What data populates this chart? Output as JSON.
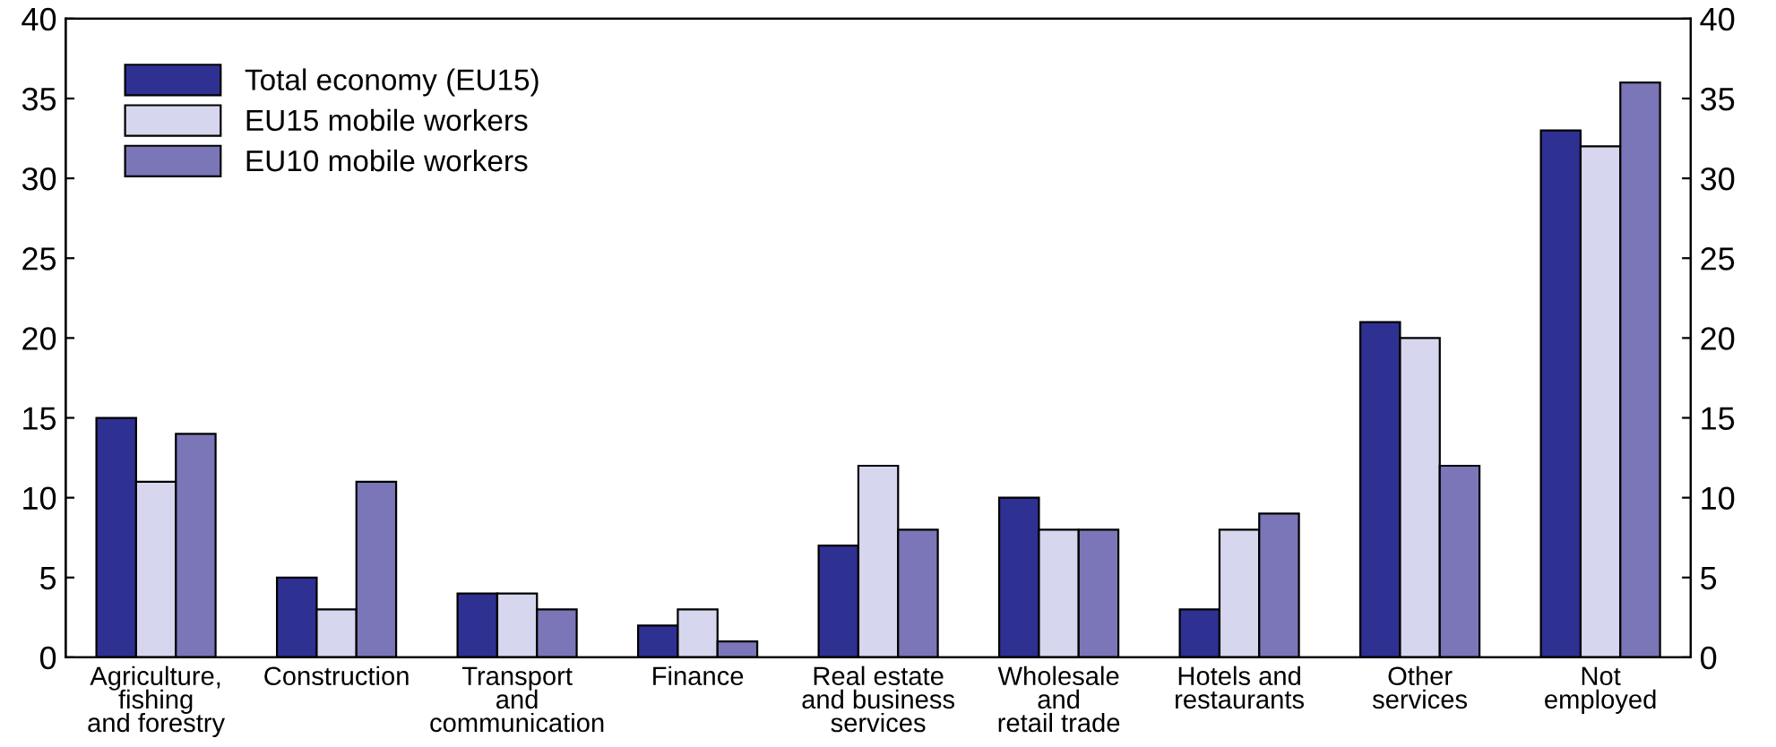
{
  "chart_data": {
    "type": "bar",
    "categories": [
      "Agriculture,\nfishing\nand forestry",
      "Construction",
      "Transport\nand\ncommunication",
      "Finance",
      "Real estate\nand business\nservices",
      "Wholesale\nand\nretail trade",
      "Hotels and\nrestaurants",
      "Other\nservices",
      "Not\nemployed"
    ],
    "series": [
      {
        "name": "Total economy (EU15)",
        "color": "#2e3192",
        "values": [
          15,
          5,
          4,
          2,
          7,
          10,
          3,
          21,
          33
        ]
      },
      {
        "name": "EU15 mobile workers",
        "color": "#d6d6ee",
        "values": [
          11,
          3,
          4,
          3,
          12,
          8,
          8,
          20,
          32
        ]
      },
      {
        "name": "EU10 mobile workers",
        "color": "#7a76b8",
        "values": [
          14,
          11,
          3,
          1,
          8,
          8,
          9,
          12,
          36
        ]
      }
    ],
    "ylim": [
      0,
      40
    ],
    "yticks": [
      0,
      5,
      10,
      15,
      20,
      25,
      30,
      35,
      40
    ],
    "y2lim": [
      0,
      40
    ],
    "y2ticks": [
      0,
      5,
      10,
      15,
      20,
      25,
      30,
      35,
      40
    ],
    "legend": "top left",
    "grid": false
  }
}
